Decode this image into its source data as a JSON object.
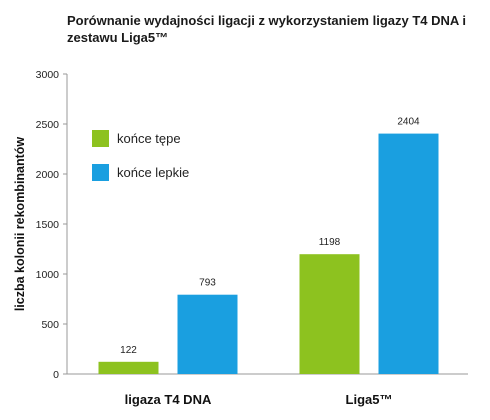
{
  "chart_data": {
    "type": "bar",
    "title": "Porównanie wydajności ligacji z wykorzystaniem ligazy T4 DNA i zestawu Liga5™",
    "ylabel": "liczba kolonii rekombinantów",
    "xlabel": "",
    "categories": [
      "ligaza T4 DNA",
      "Liga5™"
    ],
    "series": [
      {
        "name": "końce tępe",
        "values": [
          122,
          1198
        ],
        "color": "#8dc21f"
      },
      {
        "name": "końce lepkie",
        "values": [
          793,
          2404
        ],
        "color": "#1a9fe0"
      }
    ],
    "ylim": [
      0,
      3000
    ],
    "yticks": [
      0,
      500,
      1000,
      1500,
      2000,
      2500,
      3000
    ],
    "grid": false,
    "legend_position": "top-left"
  }
}
